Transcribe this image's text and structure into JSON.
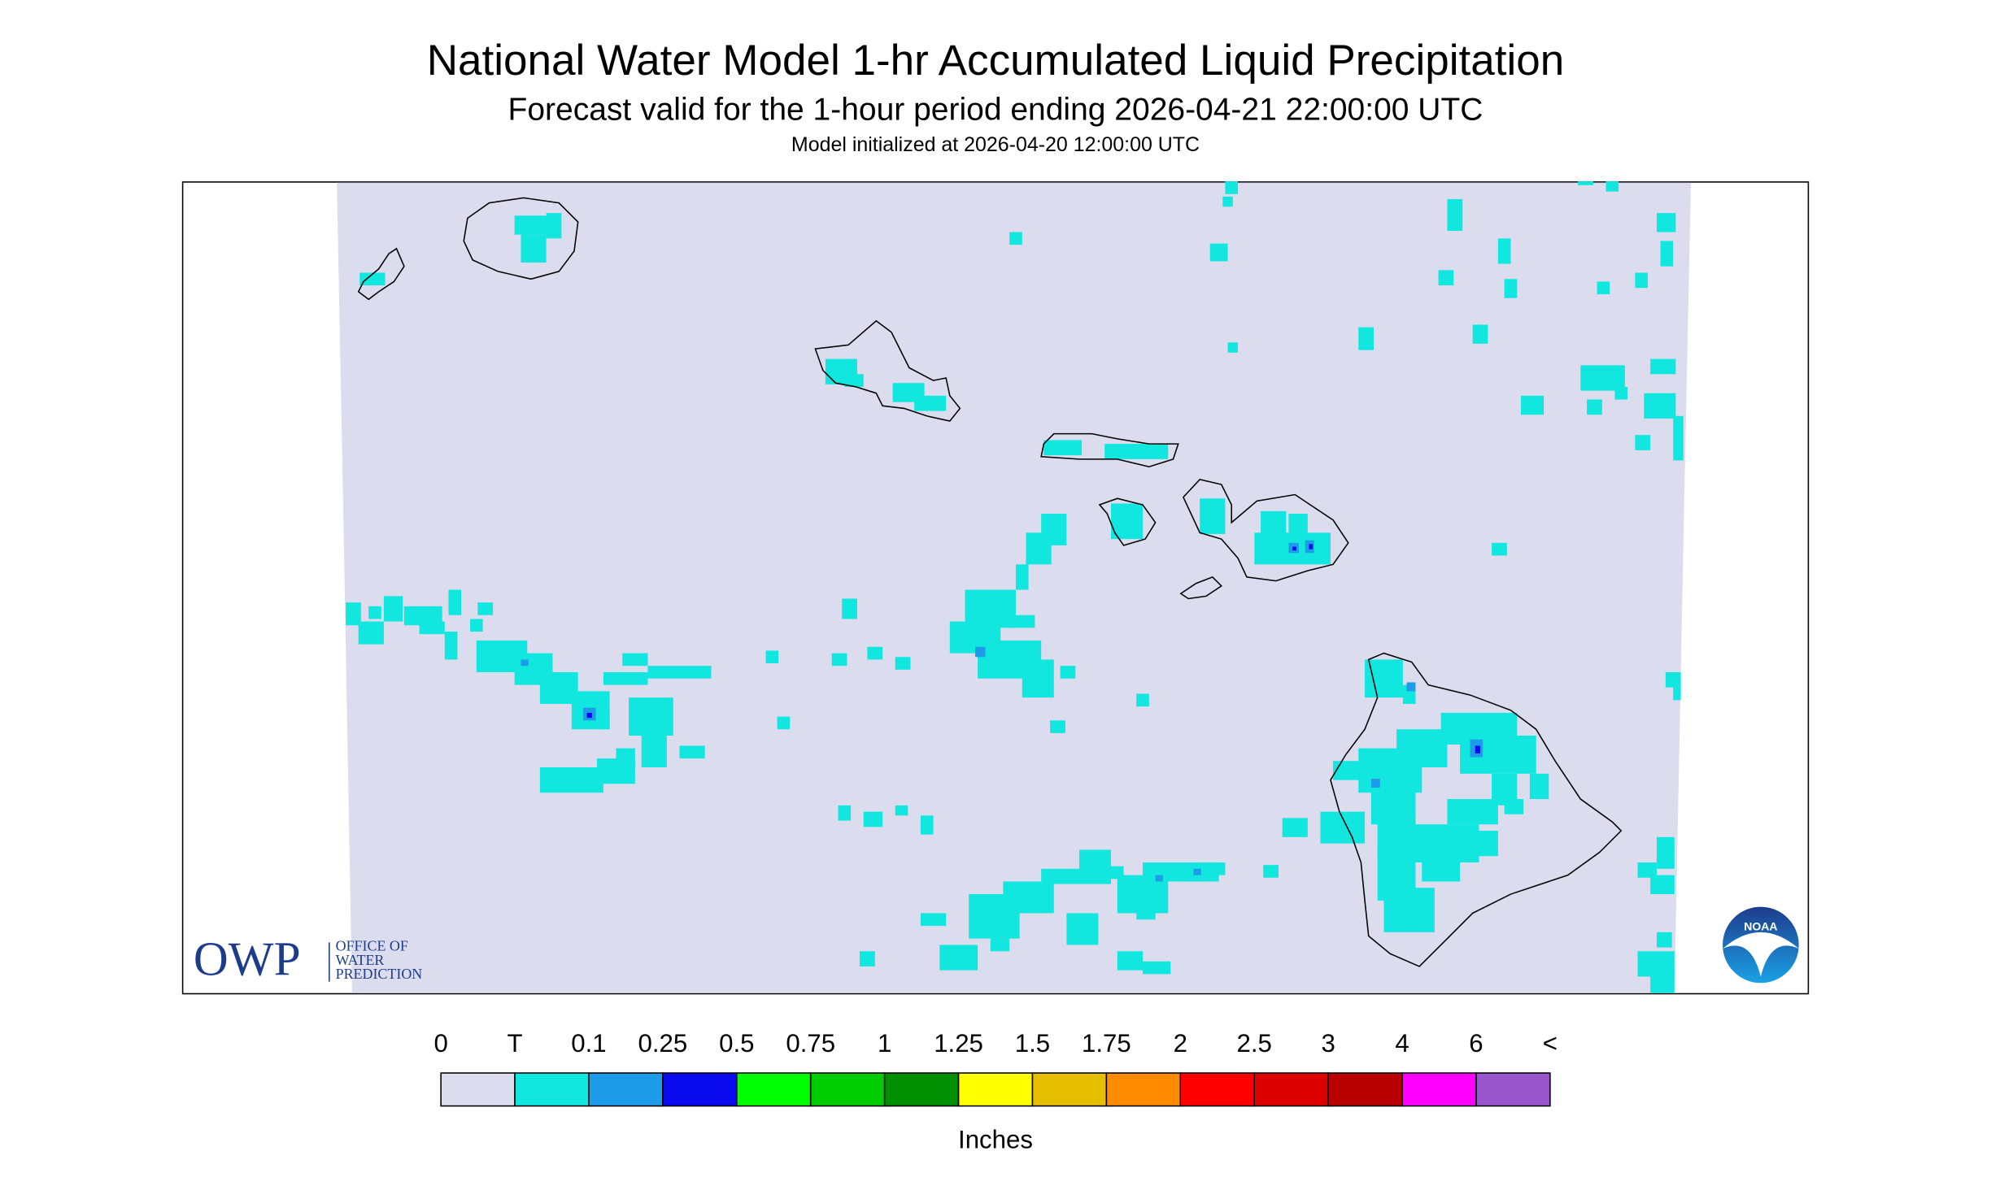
{
  "header": {
    "title": "National Water Model 1-hr Accumulated Liquid Precipitation",
    "subtitle": "Forecast valid for the 1-hour period ending 2026-04-21 22:00:00 UTC",
    "initialized": "Model initialized at 2026-04-20 12:00:00 UTC"
  },
  "colorbar": {
    "labels": [
      "0",
      "T",
      "0.1",
      "0.25",
      "0.5",
      "0.75",
      "1",
      "1.25",
      "1.5",
      "1.75",
      "2",
      "2.5",
      "3",
      "4",
      "6",
      "<"
    ],
    "colors": [
      "#dcdcef",
      "#11e6df",
      "#1e9be9",
      "#0b0bf0",
      "#00ff00",
      "#00cc00",
      "#008f00",
      "#ffff00",
      "#e6c000",
      "#ff8c00",
      "#ff0000",
      "#dd0000",
      "#b80000",
      "#ff00ff",
      "#9955cc"
    ],
    "units": "Inches"
  },
  "logos": {
    "owp": "OWP",
    "owp_lines": [
      "OFFICE OF",
      "WATER",
      "PREDICTION"
    ],
    "noaa": "NOAA"
  }
}
